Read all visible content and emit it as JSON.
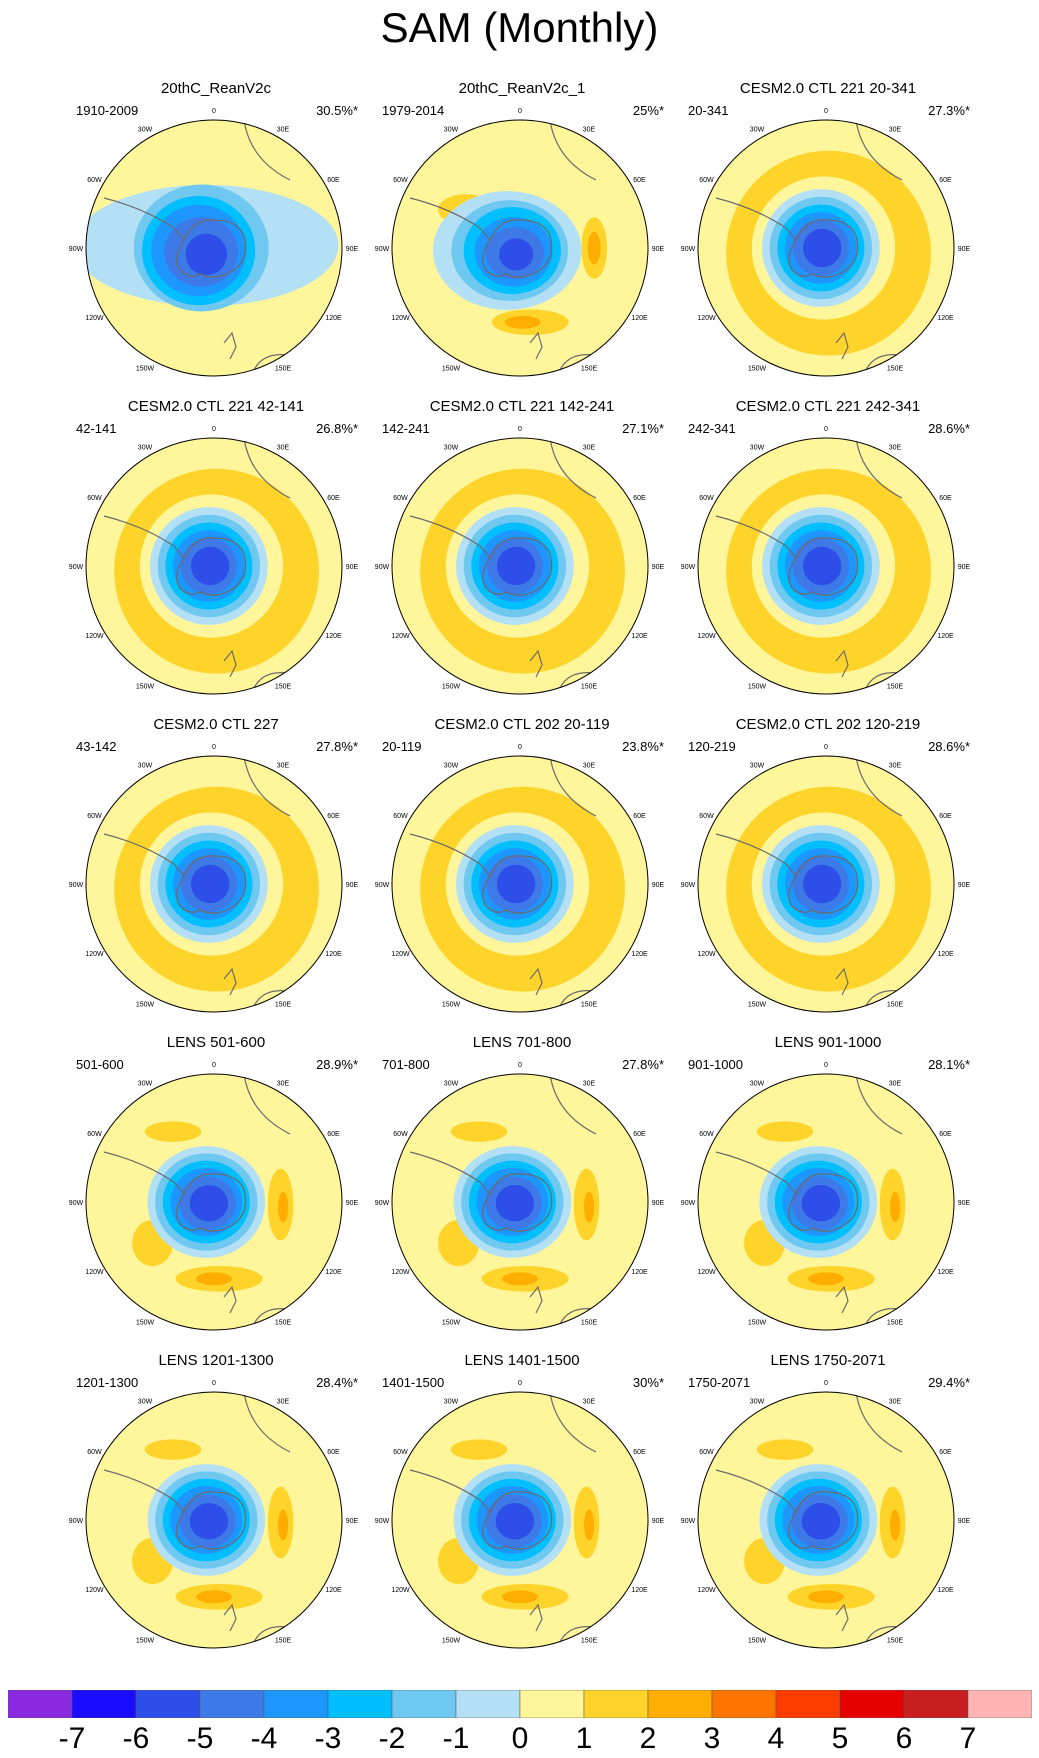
{
  "figure": {
    "title": "SAM (Monthly)"
  },
  "map_ticks": {
    "lon_labels": [
      "0",
      "30E",
      "60E",
      "90E",
      "120E",
      "150E",
      "180",
      "150W",
      "120W",
      "90W",
      "60W",
      "30W"
    ]
  },
  "chart_data": {
    "type": "heatmap",
    "projection": "south polar stereographic",
    "panels": [
      {
        "title": "20thC_ReanV2c",
        "period": "1910-2009",
        "percent": "30.5%*",
        "pattern": "reanalysis"
      },
      {
        "title": "20thC_ReanV2c_1",
        "period": "1979-2014",
        "percent": "25%*",
        "pattern": "reanalysis_recent"
      },
      {
        "title": "CESM2.0 CTL 221 20-341",
        "period": "20-341",
        "percent": "27.3%*",
        "pattern": "cesm"
      },
      {
        "title": "CESM2.0 CTL 221 42-141",
        "period": "42-141",
        "percent": "26.8%*",
        "pattern": "cesm"
      },
      {
        "title": "CESM2.0 CTL 221 142-241",
        "period": "142-241",
        "percent": "27.1%*",
        "pattern": "cesm"
      },
      {
        "title": "CESM2.0 CTL 221 242-341",
        "period": "242-341",
        "percent": "28.6%*",
        "pattern": "cesm"
      },
      {
        "title": "CESM2.0 CTL 227",
        "period": "43-142",
        "percent": "27.8%*",
        "pattern": "cesm"
      },
      {
        "title": "CESM2.0 CTL 202 20-119",
        "period": "20-119",
        "percent": "23.8%*",
        "pattern": "cesm"
      },
      {
        "title": "CESM2.0 CTL 202 120-219",
        "period": "120-219",
        "percent": "28.6%*",
        "pattern": "cesm"
      },
      {
        "title": "LENS 501-600",
        "period": "501-600",
        "percent": "28.9%*",
        "pattern": "lens"
      },
      {
        "title": "LENS 701-800",
        "period": "701-800",
        "percent": "27.8%*",
        "pattern": "lens"
      },
      {
        "title": "LENS 901-1000",
        "period": "901-1000",
        "percent": "28.1%*",
        "pattern": "lens"
      },
      {
        "title": "LENS 1201-1300",
        "period": "1201-1300",
        "percent": "28.4%*",
        "pattern": "lens"
      },
      {
        "title": "LENS 1401-1500",
        "period": "1401-1500",
        "percent": "30%*",
        "pattern": "lens"
      },
      {
        "title": "LENS 1750-2071",
        "period": "1750-2071",
        "percent": "29.4%*",
        "pattern": "lens"
      }
    ],
    "colorbar": {
      "labels": [
        "-7",
        "-6",
        "-5",
        "-4",
        "-3",
        "-2",
        "-1",
        "0",
        "1",
        "2",
        "3",
        "4",
        "5",
        "6",
        "7"
      ],
      "colors": [
        "#8a2be2",
        "#1a0dff",
        "#2d4ee8",
        "#3d7ae8",
        "#1e96ff",
        "#00bfff",
        "#6ec8f0",
        "#b3e0f5",
        "#fff59a",
        "#ffd42a",
        "#ffae00",
        "#ff7300",
        "#ff3c00",
        "#e60000",
        "#c81e1e",
        "#ffb3b3"
      ],
      "range": [
        -7,
        7
      ]
    }
  }
}
